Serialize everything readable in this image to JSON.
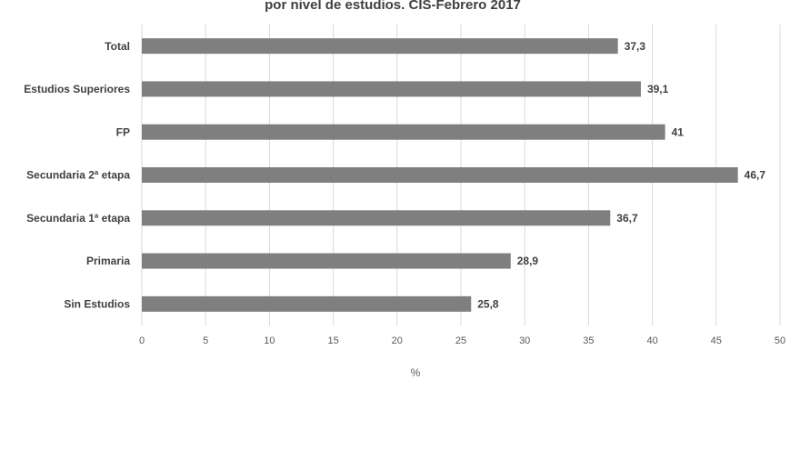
{
  "chart_data": {
    "type": "bar",
    "orientation": "horizontal",
    "title": "por nivel de estudios. CIS-Febrero 2017",
    "categories": [
      "Total",
      "Estudios Superiores",
      "FP",
      "Secundaria 2ª etapa",
      "Secundaria 1ª etapa",
      "Primaria",
      "Sin Estudios"
    ],
    "values": [
      37.3,
      39.1,
      41,
      46.7,
      36.7,
      28.9,
      25.8
    ],
    "value_labels": [
      "37,3",
      "39,1",
      "41",
      "46,7",
      "36,7",
      "28,9",
      "25,8"
    ],
    "color": "#7f7f7f",
    "x_label": "%",
    "xlim": [
      0,
      50
    ],
    "xticks": [
      0,
      5,
      10,
      15,
      20,
      25,
      30,
      35,
      40,
      45,
      50
    ],
    "grid": true
  }
}
